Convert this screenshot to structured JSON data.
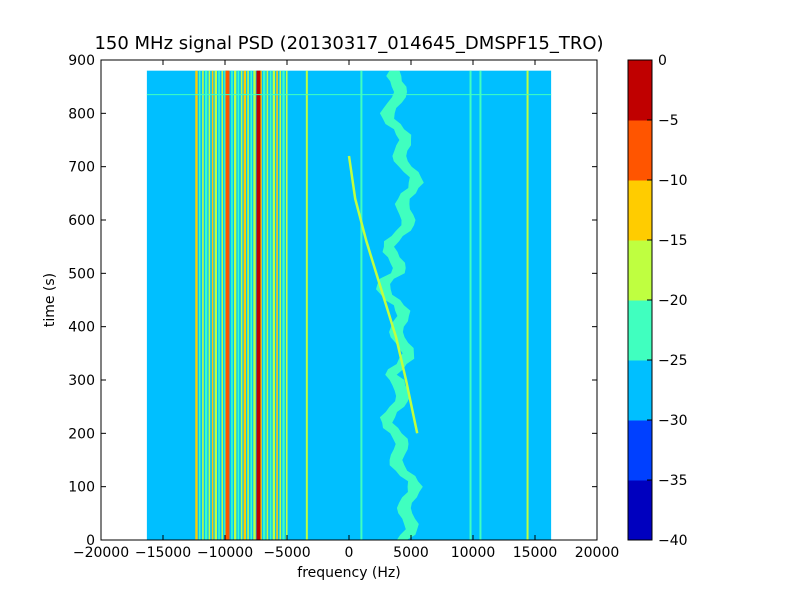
{
  "chart_data": {
    "type": "heatmap",
    "title": "150 MHz signal PSD (20130317_014645_DMSPF15_TRO)",
    "xlabel": "frequency (Hz)",
    "ylabel": "time (s)",
    "xlim": [
      -20000,
      20000
    ],
    "ylim": [
      0,
      900
    ],
    "x_ticks": [
      -20000,
      -15000,
      -10000,
      -5000,
      0,
      5000,
      10000,
      15000,
      20000
    ],
    "x_tick_labels": [
      "−20000",
      "−15000",
      "−10000",
      "−5000",
      "0",
      "5000",
      "10000",
      "15000",
      "20000"
    ],
    "y_ticks": [
      0,
      100,
      200,
      300,
      400,
      500,
      600,
      700,
      800,
      900
    ],
    "y_tick_labels": [
      "0",
      "100",
      "200",
      "300",
      "400",
      "500",
      "600",
      "700",
      "800",
      "900"
    ],
    "data_extent": {
      "freq_hz": [
        -16300,
        16300
      ],
      "time_s": [
        0,
        880
      ]
    },
    "background_level_db": [
      -30,
      -25
    ],
    "colorbar": {
      "levels": [
        -40,
        -35,
        -30,
        -25,
        -20,
        -15,
        -10,
        -5,
        0
      ],
      "tick_labels": [
        "−40",
        "−35",
        "−30",
        "−25",
        "−20",
        "−15",
        "−10",
        "−5",
        "0"
      ],
      "colors": [
        "#0000bf",
        "#0040ff",
        "#00bfff",
        "#40ffbf",
        "#bfff40",
        "#ffcc00",
        "#ff5500",
        "#c00000"
      ]
    },
    "features": [
      {
        "label": "dense interference comb",
        "freq_range_hz": [
          -12300,
          -5000
        ],
        "time_range_s": [
          0,
          880
        ],
        "level_db": [
          -20,
          0
        ]
      },
      {
        "label": "strong line",
        "freq_hz": -7300,
        "level_db": [
          -5,
          0
        ]
      },
      {
        "label": "strong line",
        "freq_hz": -9800,
        "level_db": [
          -10,
          -5
        ]
      },
      {
        "label": "line",
        "freq_hz": -3400,
        "level_db": [
          -20,
          -15
        ]
      },
      {
        "label": "line",
        "freq_hz": 1000,
        "level_db": [
          -25,
          -20
        ]
      },
      {
        "label": "line",
        "freq_hz": 9800,
        "level_db": [
          -25,
          -20
        ]
      },
      {
        "label": "line",
        "freq_hz": 10600,
        "level_db": [
          -25,
          -20
        ]
      },
      {
        "label": "line",
        "freq_hz": 14400,
        "level_db": [
          -20,
          -15
        ]
      },
      {
        "label": "wandering band",
        "freq_range_hz": [
          2500,
          6000
        ],
        "time_range_s": [
          0,
          880
        ],
        "level_db": [
          -25,
          -20
        ]
      },
      {
        "label": "satellite Doppler trace",
        "points": [
          [
            0,
            720
          ],
          [
            500,
            640
          ],
          [
            1400,
            560
          ],
          [
            2600,
            470
          ],
          [
            3800,
            380
          ],
          [
            4600,
            300
          ],
          [
            5500,
            200
          ]
        ],
        "level_db": [
          -20,
          -15
        ]
      },
      {
        "label": "horizontal line",
        "time_s": 835,
        "level_db": [
          -25,
          -20
        ]
      }
    ]
  }
}
